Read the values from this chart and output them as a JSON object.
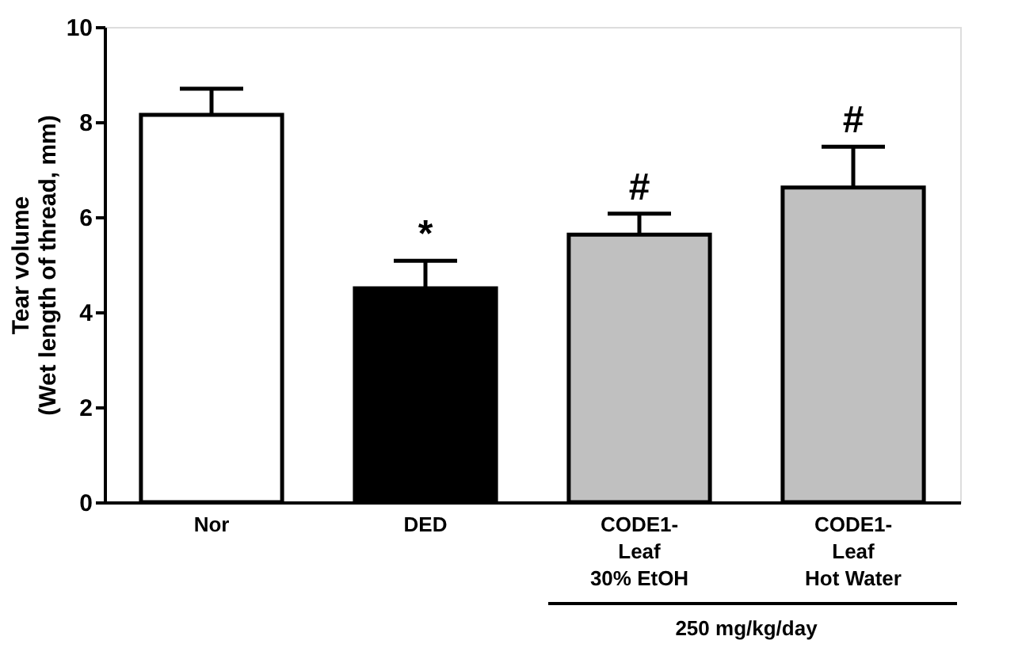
{
  "chart_data": {
    "type": "bar",
    "ylabel": "Tear volume\n(Wet length of thread, mm)",
    "categories": [
      "Nor",
      "DED",
      "CODE1-\nLeaf\n30% EtOH",
      "CODE1-\nLeaf\nHot Water"
    ],
    "values": [
      8.15,
      4.5,
      5.63,
      6.62
    ],
    "colors": [
      "#ffffff",
      "#000000",
      "#c0c0c0",
      "#c0c0c0"
    ],
    "errors": [
      [
        8.15,
        8.7
      ],
      [
        4.5,
        5.08
      ],
      [
        5.63,
        6.07
      ],
      [
        6.62,
        7.48
      ]
    ],
    "ylim": [
      0,
      10
    ],
    "yticks": [
      0,
      2,
      4,
      6,
      8,
      10
    ],
    "grid": false,
    "annotations": [
      {
        "text": "*",
        "x": "DED",
        "y": 5.08
      },
      {
        "text": "#",
        "x": "CODE1-\nLeaf\n30% EtOH",
        "y": 6.07
      },
      {
        "text": "#",
        "x": "CODE1-\nLeaf\nHot Water",
        "y": 7.48
      },
      "250 mg/kg/day"
    ]
  }
}
